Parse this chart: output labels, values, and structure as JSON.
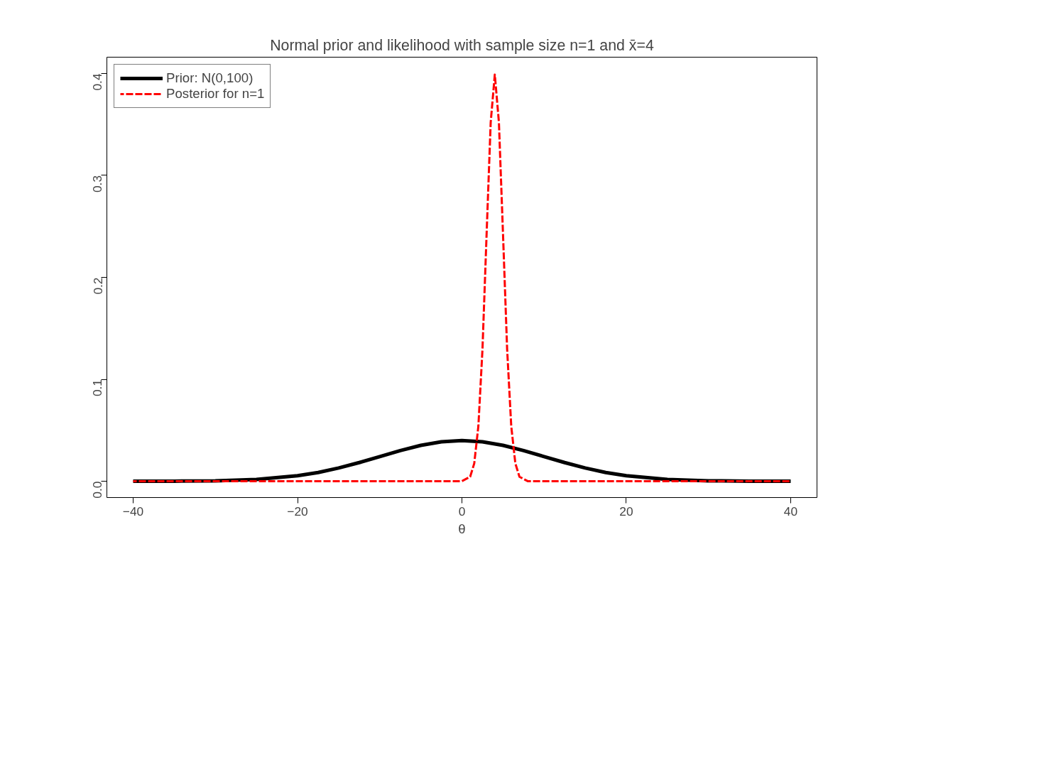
{
  "chart_data": {
    "type": "line",
    "title": "Normal prior and likelihood with sample size n=1 and x̄=4",
    "xlabel": "θ",
    "xlim": [
      -43.2,
      43.2
    ],
    "ylim": [
      -0.016,
      0.416
    ],
    "xticks": [
      -40,
      -20,
      0,
      20,
      40
    ],
    "yticks": [
      {
        "value": 0,
        "label": "0.0"
      },
      0.1,
      0.2,
      0.3,
      0.4
    ],
    "grid": false,
    "legend": "top left",
    "marker": "none",
    "series": [
      {
        "name": "Prior: N(0,100)",
        "color": "#000000",
        "line_style": "solid",
        "x": [
          -40,
          -35,
          -30,
          -25,
          -20,
          -17.5,
          -15,
          -12.5,
          -10,
          -7.5,
          -5,
          -2.5,
          0,
          2.5,
          5,
          7.5,
          10,
          12.5,
          15,
          17.5,
          20,
          25,
          30,
          35,
          40
        ],
        "values": [
          0.0001,
          0.0001,
          0.0004,
          0.0018,
          0.0054,
          0.0086,
          0.013,
          0.0183,
          0.0242,
          0.0301,
          0.0352,
          0.0387,
          0.0399,
          0.0387,
          0.0352,
          0.0301,
          0.0242,
          0.0183,
          0.013,
          0.0086,
          0.0054,
          0.0018,
          0.0004,
          0.0001,
          0.0001
        ]
      },
      {
        "name": "Posterior for n=1",
        "color": "#ff0000",
        "line_style": "dashed",
        "x": [
          -40,
          0,
          1,
          1.5,
          2,
          2.5,
          3,
          3.5,
          4,
          4.5,
          5,
          5.5,
          6,
          6.5,
          7,
          8,
          40
        ],
        "values": [
          0,
          0.0001,
          0.0044,
          0.0175,
          0.054,
          0.1295,
          0.242,
          0.352,
          0.399,
          0.352,
          0.242,
          0.1295,
          0.054,
          0.0175,
          0.0044,
          0.0001,
          0
        ]
      }
    ]
  }
}
